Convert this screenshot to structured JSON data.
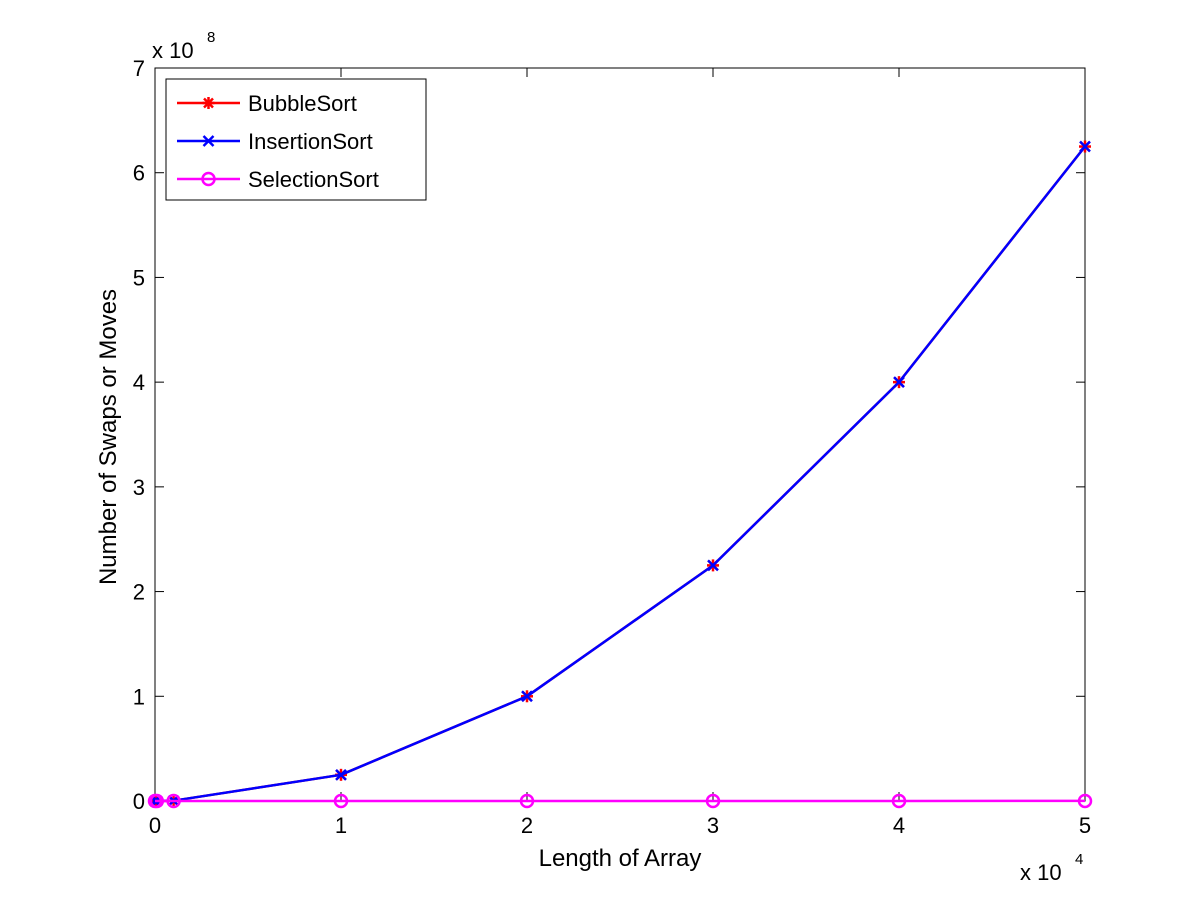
{
  "chart_data": {
    "type": "line",
    "title": "",
    "xlabel": "Length of Array",
    "ylabel": "Number of Swaps or Moves",
    "x_multiplier": {
      "base": "x 10",
      "exponent": "4"
    },
    "y_multiplier": {
      "base": "x 10",
      "exponent": "8"
    },
    "xlim": [
      0,
      50000
    ],
    "ylim": [
      0,
      700000000
    ],
    "xticks": [
      0,
      10000,
      20000,
      30000,
      40000,
      50000
    ],
    "xtick_labels": [
      "0",
      "1",
      "2",
      "3",
      "4",
      "5"
    ],
    "yticks": [
      0,
      100000000,
      200000000,
      300000000,
      400000000,
      500000000,
      600000000,
      700000000
    ],
    "ytick_labels": [
      "0",
      "1",
      "2",
      "3",
      "4",
      "5",
      "6",
      "7"
    ],
    "grid": false,
    "legend_position": "top-left",
    "series": [
      {
        "name": "BubbleSort",
        "color": "#ff0000",
        "marker": "asterisk",
        "x": [
          0,
          100,
          1000,
          10000,
          20000,
          30000,
          40000,
          50000
        ],
        "y": [
          0,
          2500,
          250000,
          25000000,
          100000000,
          225000000,
          400000000,
          625000000
        ]
      },
      {
        "name": "InsertionSort",
        "color": "#0000ff",
        "marker": "x",
        "x": [
          0,
          100,
          1000,
          10000,
          20000,
          30000,
          40000,
          50000
        ],
        "y": [
          0,
          2500,
          250000,
          25000000,
          100000000,
          225000000,
          400000000,
          625000000
        ]
      },
      {
        "name": "SelectionSort",
        "color": "#ff00ff",
        "marker": "circle",
        "x": [
          0,
          100,
          1000,
          10000,
          20000,
          30000,
          40000,
          50000
        ],
        "y": [
          0,
          99,
          999,
          9999,
          19999,
          29999,
          39999,
          49999
        ]
      }
    ]
  }
}
